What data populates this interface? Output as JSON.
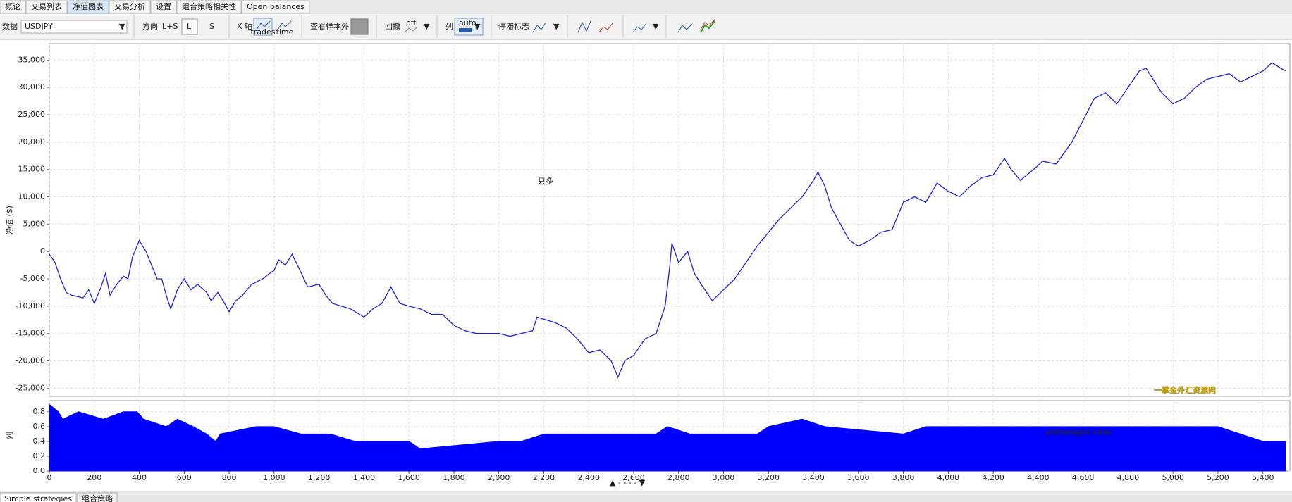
{
  "tabs": [
    "概论",
    "交易列表",
    "净值图表",
    "交易分析",
    "设置",
    "组合策略相关性",
    "Open balances"
  ],
  "toolbar": {
    "data_label": "数据",
    "symbol": "USDJPY",
    "direction_label": "方向",
    "direction_all": "L+S",
    "direction_long": "L",
    "direction_short": "S",
    "xaxis_label": "X 轴",
    "xaxis_trades": "trades",
    "xaxis_time": "time",
    "oos_label": "查看样本外",
    "drawdown_label": "回撤",
    "drawdown_off": "off",
    "column_label": "列",
    "column_auto": "auto",
    "stagnation_label": "停滞标志"
  },
  "bottom_tabs": [
    "Simple strategies",
    "组合策略"
  ],
  "watermark": {
    "cn": "一掌金外汇资源网",
    "url": "yizhangjin.com"
  },
  "chart_data": [
    {
      "type": "line",
      "y_label": "净值 ($)",
      "annotation": "只多",
      "color": "#2020e0",
      "grid": true,
      "x": [
        0,
        25,
        50,
        75,
        100,
        150,
        175,
        200,
        230,
        250,
        270,
        300,
        330,
        350,
        370,
        400,
        430,
        450,
        480,
        500,
        520,
        540,
        570,
        600,
        630,
        660,
        700,
        720,
        750,
        780,
        800,
        830,
        860,
        900,
        950,
        980,
        1000,
        1020,
        1050,
        1080,
        1110,
        1150,
        1200,
        1230,
        1260,
        1300,
        1340,
        1380,
        1400,
        1440,
        1480,
        1520,
        1560,
        1600,
        1650,
        1700,
        1750,
        1800,
        1850,
        1900,
        1950,
        2000,
        2050,
        2100,
        2150,
        2170,
        2250,
        2300,
        2350,
        2400,
        2450,
        2500,
        2530,
        2560,
        2600,
        2650,
        2700,
        2740,
        2760,
        2770,
        2800,
        2840,
        2870,
        2900,
        2950,
        3000,
        3050,
        3100,
        3150,
        3200,
        3250,
        3300,
        3350,
        3400,
        3420,
        3450,
        3480,
        3520,
        3560,
        3600,
        3650,
        3700,
        3750,
        3800,
        3850,
        3900,
        3950,
        4000,
        4050,
        4100,
        4150,
        4200,
        4250,
        4280,
        4320,
        4380,
        4420,
        4480,
        4550,
        4600,
        4650,
        4700,
        4750,
        4800,
        4850,
        4880,
        4950,
        5000,
        5050,
        5100,
        5150,
        5200,
        5250,
        5300,
        5350,
        5400,
        5440,
        5460,
        5500
      ],
      "values": [
        -500,
        -2000,
        -5000,
        -7500,
        -8000,
        -8500,
        -7000,
        -9500,
        -6500,
        -4000,
        -8000,
        -6000,
        -4500,
        -5000,
        -1000,
        2000,
        0,
        -2000,
        -5000,
        -5000,
        -8000,
        -10500,
        -7000,
        -5000,
        -7000,
        -6000,
        -7500,
        -9000,
        -7500,
        -9500,
        -11000,
        -9000,
        -8000,
        -6000,
        -5000,
        -4000,
        -3500,
        -1500,
        -2500,
        -500,
        -3000,
        -6500,
        -6000,
        -8000,
        -9500,
        -10000,
        -10500,
        -11500,
        -12000,
        -10500,
        -9500,
        -6500,
        -9500,
        -10000,
        -10500,
        -11500,
        -11500,
        -13500,
        -14500,
        -15000,
        -15000,
        -15000,
        -15500,
        -15000,
        -14500,
        -12000,
        -13000,
        -14000,
        -16000,
        -18500,
        -18000,
        -20000,
        -23000,
        -20000,
        -19000,
        -16000,
        -15000,
        -10000,
        -3000,
        1500,
        -2000,
        0,
        -4000,
        -6000,
        -9000,
        -7000,
        -5000,
        -2000,
        1000,
        3500,
        6000,
        8000,
        10000,
        13000,
        14500,
        12000,
        8000,
        5000,
        2000,
        1000,
        2000,
        3500,
        4000,
        9000,
        10000,
        9000,
        12500,
        11000,
        10000,
        12000,
        13500,
        14000,
        17000,
        15000,
        13000,
        15000,
        16500,
        16000,
        20000,
        24000,
        28000,
        29000,
        27000,
        30000,
        33000,
        33500,
        29000,
        27000,
        28000,
        30000,
        31500,
        32000,
        32500,
        31000,
        32000,
        33000,
        34500,
        34000,
        33000
      ],
      "xlim": [
        0,
        5520
      ],
      "xticks": [
        0,
        200,
        400,
        600,
        800,
        1000,
        1200,
        1400,
        1600,
        1800,
        2000,
        2200,
        2400,
        2600,
        2800,
        3000,
        3200,
        3400,
        3600,
        3800,
        4000,
        4200,
        4400,
        4600,
        4800,
        5000,
        5200,
        5400
      ],
      "ylim": [
        -26500,
        38000
      ],
      "yticks": [
        {
          "value": -25000,
          "label": "-25,000"
        },
        {
          "value": -20000,
          "label": "-20,000"
        },
        {
          "value": -15000,
          "label": "-15,000"
        },
        {
          "value": -10000,
          "label": "-10,000"
        },
        {
          "value": -5000,
          "label": "-5,000"
        },
        0,
        {
          "value": 5000,
          "label": "5,000"
        },
        {
          "value": 10000,
          "label": "10,000"
        },
        {
          "value": 15000,
          "label": "15,000"
        },
        {
          "value": 20000,
          "label": "20,000"
        },
        {
          "value": 25000,
          "label": "25,000"
        },
        {
          "value": 30000,
          "label": "30,000"
        },
        {
          "value": 35000,
          "label": "35,000"
        }
      ]
    },
    {
      "type": "area",
      "y_label": "列",
      "color": "#0000ff",
      "grid": true,
      "x": [
        0,
        40,
        60,
        130,
        240,
        330,
        390,
        420,
        520,
        570,
        640,
        700,
        740,
        760,
        920,
        1000,
        1120,
        1250,
        1360,
        1400,
        1600,
        1650,
        2000,
        2100,
        2200,
        2300,
        2600,
        2700,
        2750,
        2850,
        3000,
        3150,
        3200,
        3350,
        3450,
        3800,
        3900,
        4100,
        4200,
        4350,
        4600,
        5000,
        5200,
        5400,
        5500
      ],
      "values": [
        0.9,
        0.8,
        0.7,
        0.8,
        0.7,
        0.8,
        0.8,
        0.7,
        0.6,
        0.7,
        0.6,
        0.5,
        0.4,
        0.5,
        0.6,
        0.6,
        0.5,
        0.5,
        0.4,
        0.4,
        0.4,
        0.3,
        0.4,
        0.4,
        0.5,
        0.5,
        0.5,
        0.5,
        0.6,
        0.5,
        0.5,
        0.5,
        0.6,
        0.7,
        0.6,
        0.5,
        0.6,
        0.6,
        0.6,
        0.6,
        0.6,
        0.6,
        0.6,
        0.4,
        0.4
      ],
      "xlim": [
        0,
        5520
      ],
      "xticks": [
        0,
        200,
        400,
        600,
        800,
        {
          "value": 1000,
          "label": "1,000"
        },
        {
          "value": 1200,
          "label": "1,200"
        },
        {
          "value": 1400,
          "label": "1,400"
        },
        {
          "value": 1600,
          "label": "1,600"
        },
        {
          "value": 1800,
          "label": "1,800"
        },
        {
          "value": 2000,
          "label": "2,000"
        },
        {
          "value": 2200,
          "label": "2,200"
        },
        {
          "value": 2400,
          "label": "2,400"
        },
        {
          "value": 2600,
          "label": "2,600"
        },
        {
          "value": 2800,
          "label": "2,800"
        },
        {
          "value": 3000,
          "label": "3,000"
        },
        {
          "value": 3200,
          "label": "3,200"
        },
        {
          "value": 3400,
          "label": "3,400"
        },
        {
          "value": 3600,
          "label": "3,600"
        },
        {
          "value": 3800,
          "label": "3,800"
        },
        {
          "value": 4000,
          "label": "4,000"
        },
        {
          "value": 4200,
          "label": "4,200"
        },
        {
          "value": 4400,
          "label": "4,400"
        },
        {
          "value": 4600,
          "label": "4,600"
        },
        {
          "value": 4800,
          "label": "4,800"
        },
        {
          "value": 5000,
          "label": "5,000"
        },
        {
          "value": 5200,
          "label": "5,200"
        },
        {
          "value": 5400,
          "label": "5,400"
        }
      ],
      "ylim": [
        0,
        0.95
      ],
      "yticks": [
        {
          "value": 0,
          "label": "0.0"
        },
        0.2,
        0.4,
        0.6,
        0.8
      ]
    }
  ]
}
